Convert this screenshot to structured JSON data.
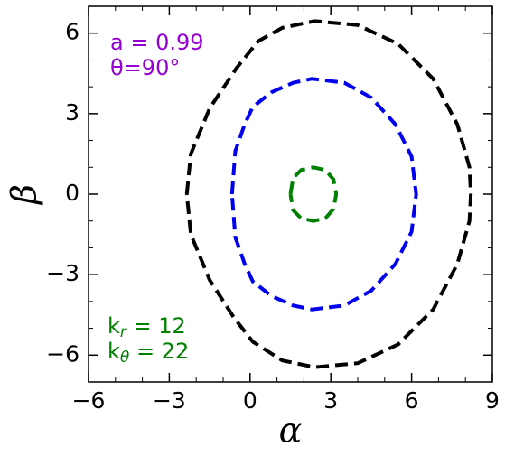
{
  "chart_data": {
    "type": "line",
    "xlabel": "α",
    "ylabel": "β",
    "xlim": [
      -6,
      9
    ],
    "ylim": [
      -7,
      7
    ],
    "xticks": [
      {
        "value": -6,
        "label": "−6"
      },
      {
        "value": -3,
        "label": "−3"
      },
      0,
      3,
      6,
      9
    ],
    "yticks": [
      {
        "value": -6,
        "label": "−6"
      },
      {
        "value": -3,
        "label": "−3"
      },
      0,
      3,
      6
    ],
    "linestyle": "dashed",
    "annotations": [
      {
        "color": "#9400d3",
        "lines": [
          {
            "text": "a = 0.99"
          },
          {
            "text": "θ=90°"
          }
        ]
      },
      {
        "color": "#008000",
        "lines": [
          {
            "text": "k",
            "sub": "r",
            "rest": " = 12"
          },
          {
            "text": "k",
            "sub": "θ",
            "rest": " = 22"
          }
        ]
      }
    ],
    "series": [
      {
        "color": "#000000",
        "x": [
          -2.35,
          -2.2,
          -1.5,
          -0.5,
          0.3,
          1.2,
          2.4,
          4,
          5.5,
          6.8,
          7.7,
          8.15,
          8.2,
          8.15,
          7.7,
          6.8,
          5.5,
          4,
          2.4,
          1.2,
          0.1,
          -0.6,
          -1.5,
          -2.2,
          -2.35
        ],
        "y": [
          0,
          1.5,
          3.2,
          4.7,
          5.7,
          6.2,
          6.45,
          6.3,
          5.6,
          4.3,
          2.6,
          1,
          0,
          -1,
          -2.6,
          -4.3,
          -5.6,
          -6.3,
          -6.45,
          -6.2,
          -5.5,
          -4.6,
          -3.2,
          -1.5,
          0
        ]
      },
      {
        "color": "#0000ee",
        "x": [
          -0.67,
          -0.55,
          -0.2,
          0.1,
          0.8,
          1.6,
          2.3,
          3.5,
          4.5,
          5.4,
          6,
          6.17,
          6,
          5.4,
          4.5,
          3.5,
          2.3,
          1.6,
          0.8,
          0.1,
          -0.2,
          -0.55,
          -0.67
        ],
        "y": [
          0,
          1.6,
          2.6,
          3.25,
          3.8,
          4.15,
          4.3,
          4.15,
          3.6,
          2.6,
          1.4,
          0,
          -1.4,
          -2.6,
          -3.6,
          -4.15,
          -4.3,
          -4.15,
          -3.8,
          -3.25,
          -2.6,
          -1.6,
          0
        ]
      },
      {
        "color": "#008000",
        "x": [
          1.5,
          1.6,
          1.9,
          2.35,
          2.8,
          3.1,
          3.2,
          3.1,
          2.8,
          2.35,
          1.9,
          1.6,
          1.5
        ],
        "y": [
          0,
          0.6,
          0.9,
          1.0,
          0.9,
          0.55,
          0,
          -0.55,
          -0.9,
          -1.0,
          -0.9,
          -0.6,
          0
        ]
      }
    ]
  }
}
